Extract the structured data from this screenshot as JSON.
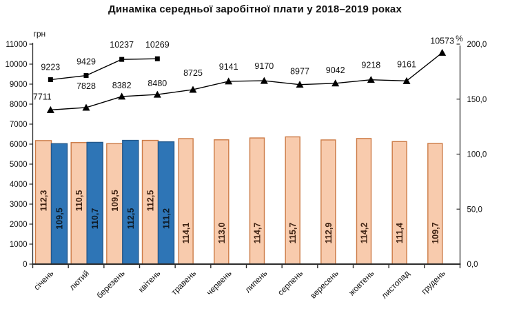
{
  "chart_data": {
    "type": "bar+line",
    "title": "Динаміка середньої заробітної плати у 2018–2019 роках",
    "categories": [
      "січень",
      "лютий",
      "березень",
      "квітень",
      "травень",
      "червень",
      "липень",
      "серпень",
      "вересень",
      "жовтень",
      "листопад",
      "грудень"
    ],
    "left_axis": {
      "unit_label": "грн",
      "min": 0,
      "max": 11000,
      "step": 1000,
      "tick_labels": [
        "0",
        "1000",
        "2000",
        "3000",
        "4000",
        "5000",
        "6000",
        "7000",
        "8000",
        "9000",
        "10000",
        "11000"
      ]
    },
    "right_axis": {
      "unit_label": "%",
      "min": 0,
      "max": 200,
      "step": 50,
      "tick_labels": [
        "0,0",
        "50,0",
        "100,0",
        "150,0",
        "200,0"
      ]
    },
    "grid": false,
    "legend": "none",
    "bar_series": [
      {
        "axis": "right",
        "fill": "#F8CBAD",
        "border": "#CC7A45",
        "label_color": "#3F2212",
        "values": [
          112.3,
          110.5,
          109.5,
          112.5,
          114.1,
          113.0,
          114.7,
          115.7,
          112.9,
          114.2,
          111.4,
          109.7
        ],
        "value_labels": [
          "112,3",
          "110,5",
          "109,5",
          "112,5",
          "114,1",
          "113,0",
          "114,7",
          "115,7",
          "112,9",
          "114,2",
          "111,4",
          "109,7"
        ]
      },
      {
        "axis": "right",
        "fill": "#2E75B6",
        "border": "#24598C",
        "label_color": "#0E1B26",
        "values": [
          109.5,
          110.7,
          112.5,
          111.2
        ],
        "value_labels": [
          "109,5",
          "110,7",
          "112,5",
          "111,2"
        ]
      }
    ],
    "line_series": [
      {
        "axis": "left",
        "marker": "triangle",
        "color": "#000000",
        "values": [
          7711,
          7828,
          8382,
          8480,
          8725,
          9141,
          9170,
          8977,
          9042,
          9218,
          9161,
          10573
        ],
        "value_labels": [
          "7711",
          "7828",
          "8382",
          "8480",
          "8725",
          "9141",
          "9170",
          "8977",
          "9042",
          "9218",
          "9161",
          "10573"
        ]
      },
      {
        "axis": "left",
        "marker": "square",
        "color": "#000000",
        "values": [
          9223,
          9429,
          10237,
          10269
        ],
        "value_labels": [
          "9223",
          "9429",
          "10237",
          "10269"
        ]
      }
    ]
  }
}
